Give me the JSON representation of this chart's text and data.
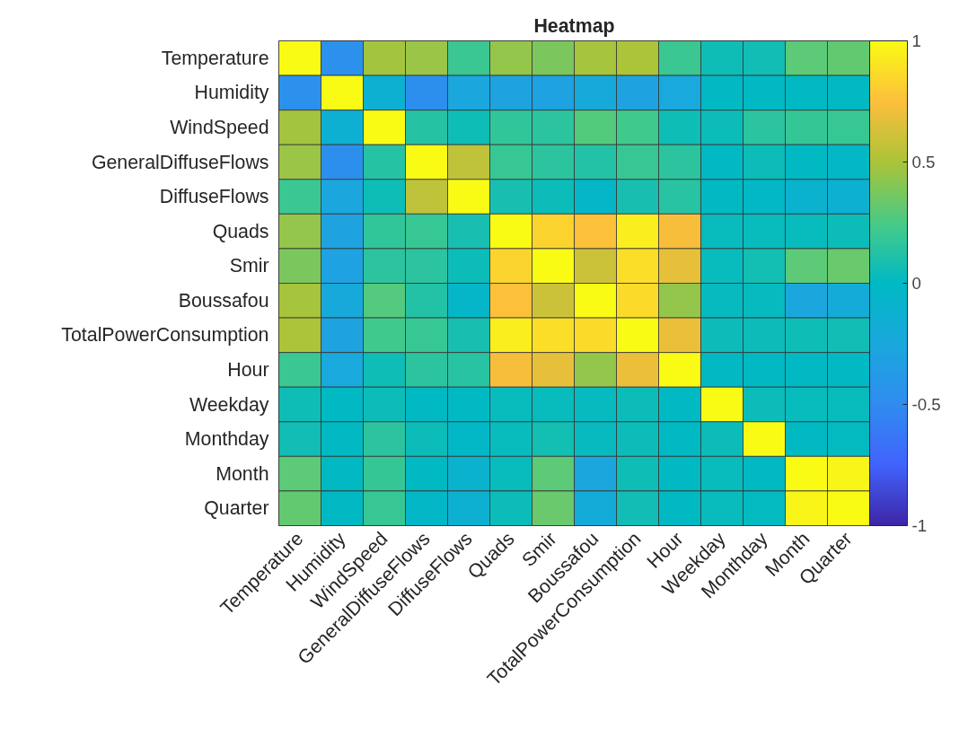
{
  "chart_data": {
    "type": "heatmap",
    "title": "Heatmap",
    "categories": [
      "Temperature",
      "Humidity",
      "WindSpeed",
      "GeneralDiffuseFlows",
      "DiffuseFlows",
      "Quads",
      "Smir",
      "Boussafou",
      "TotalPowerConsumption",
      "Hour",
      "Weekday",
      "Monthday",
      "Month",
      "Quarter"
    ],
    "y_categories": [
      "Temperature",
      "Humidity",
      "WindSpeed",
      "GeneralDiffuseFlows",
      "DiffuseFlows",
      "Quads",
      "Smir",
      "Boussafou",
      "TotalPowerConsumption",
      "Hour",
      "Weekday",
      "Monthday",
      "Month",
      "Quarter"
    ],
    "cells": [
      [
        1,
        -0.46,
        0.48,
        0.46,
        0.2,
        0.44,
        0.38,
        0.49,
        0.5,
        0.2,
        0.05,
        0.06,
        0.3,
        0.32
      ],
      [
        -0.46,
        1,
        -0.14,
        -0.47,
        -0.26,
        -0.29,
        -0.3,
        -0.23,
        -0.29,
        -0.24,
        0,
        0,
        0,
        0
      ],
      [
        0.48,
        -0.14,
        1,
        0.13,
        0.05,
        0.17,
        0.15,
        0.28,
        0.22,
        0.05,
        0.04,
        0.15,
        0.18,
        0.19
      ],
      [
        0.46,
        -0.47,
        0.13,
        1,
        0.56,
        0.19,
        0.15,
        0.12,
        0.19,
        0.15,
        0,
        0.04,
        0,
        -0.03
      ],
      [
        0.2,
        -0.26,
        0.05,
        0.56,
        1,
        0.08,
        0.04,
        -0.04,
        0.08,
        0.14,
        0,
        -0.02,
        -0.1,
        -0.13
      ],
      [
        0.44,
        -0.29,
        0.17,
        0.19,
        0.08,
        1,
        0.83,
        0.75,
        0.94,
        0.73,
        0.03,
        0.03,
        0.03,
        0.04
      ],
      [
        0.38,
        -0.3,
        0.15,
        0.15,
        0.04,
        0.83,
        1,
        0.6,
        0.88,
        0.68,
        0.03,
        0.07,
        0.3,
        0.33
      ],
      [
        0.49,
        -0.23,
        0.28,
        0.12,
        -0.04,
        0.75,
        0.6,
        1,
        0.86,
        0.44,
        0.02,
        0.02,
        -0.26,
        -0.2
      ],
      [
        0.5,
        -0.29,
        0.22,
        0.19,
        0.08,
        0.94,
        0.88,
        0.86,
        1,
        0.7,
        0.04,
        0.04,
        0.05,
        0.06
      ],
      [
        0.2,
        -0.24,
        0.05,
        0.15,
        0.14,
        0.73,
        0.68,
        0.44,
        0.7,
        1,
        0,
        0,
        0,
        0
      ],
      [
        0.05,
        0,
        0.04,
        0,
        0,
        0.03,
        0.03,
        0.02,
        0.04,
        0,
        1,
        0.04,
        0.03,
        0.03
      ],
      [
        0.06,
        0,
        0.15,
        0.04,
        -0.02,
        0.03,
        0.07,
        0.02,
        0.04,
        0,
        0.04,
        1,
        0,
        0.01
      ],
      [
        0.3,
        0,
        0.18,
        0,
        -0.1,
        0.03,
        0.3,
        -0.26,
        0.05,
        0,
        0.03,
        0,
        1,
        0.97
      ],
      [
        0.32,
        0,
        0.19,
        -0.03,
        -0.13,
        0.04,
        0.33,
        -0.2,
        0.06,
        0,
        0.03,
        0.01,
        0.97,
        1
      ]
    ],
    "clim": [
      -1,
      1
    ],
    "cticks": [
      {
        "value": -1,
        "label": "-1"
      },
      {
        "value": -0.5,
        "label": "-0.5"
      },
      {
        "value": 0,
        "label": "0"
      },
      {
        "value": 0.5,
        "label": "0.5"
      },
      {
        "value": 1,
        "label": "1"
      }
    ]
  }
}
